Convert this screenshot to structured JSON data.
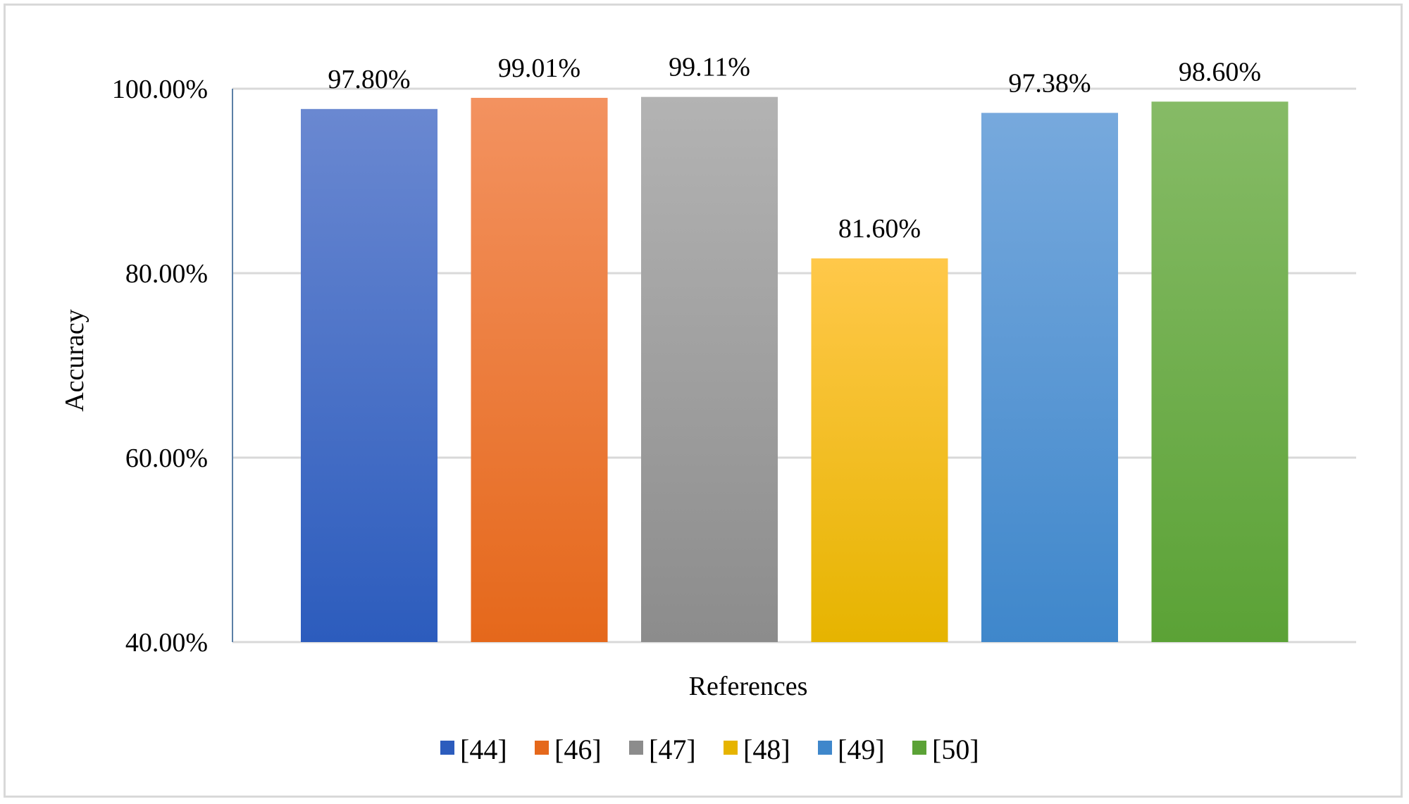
{
  "chart_data": {
    "type": "bar",
    "categories": [
      "[44]",
      "[46]",
      "[47]",
      "[48]",
      "[49]",
      "[50]"
    ],
    "values": [
      97.8,
      99.01,
      99.11,
      81.6,
      97.38,
      98.6
    ],
    "data_labels": [
      "97.80%",
      "99.01%",
      "99.11%",
      "81.60%",
      "97.38%",
      "98.60%"
    ],
    "title": "",
    "xlabel": "References",
    "ylabel": "Accuracy",
    "ylim": [
      40,
      100
    ],
    "yticks": [
      40,
      60,
      80,
      100
    ],
    "ytick_labels": [
      "40.00%",
      "60.00%",
      "80.00%",
      "100.00%"
    ],
    "grid": true,
    "legend_position": "bottom",
    "colors": [
      [
        "#6a88d1",
        "#2c5cbd"
      ],
      [
        "#f39260",
        "#e5681b"
      ],
      [
        "#b3b3b3",
        "#8c8c8c"
      ],
      [
        "#ffc84a",
        "#e6b400"
      ],
      [
        "#77a9dd",
        "#3f87cb"
      ],
      [
        "#86bb66",
        "#5ba236"
      ]
    ]
  }
}
